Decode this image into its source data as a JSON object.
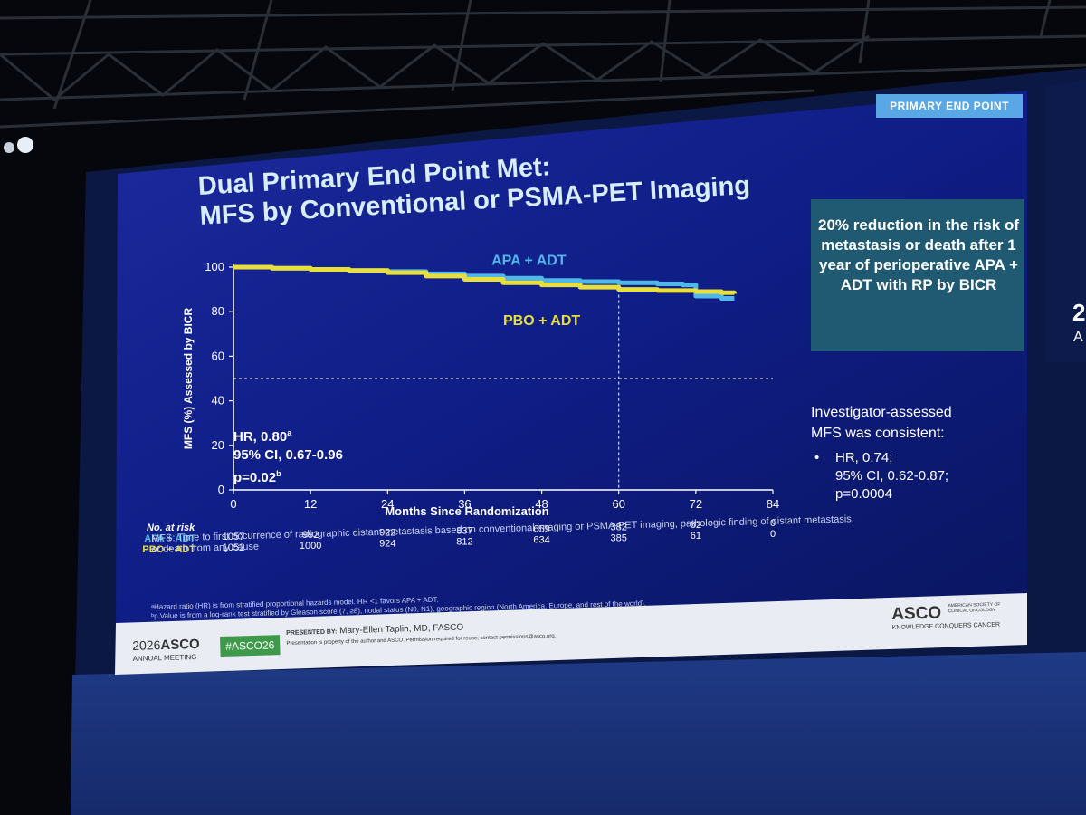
{
  "slide": {
    "badge": "PRIMARY END POINT",
    "title_line1": "Dual Primary End Point Met:",
    "title_line2": "MFS by Conventional or PSMA-PET Imaging",
    "callout": "20% reduction in the risk of metastasis or death after 1 year of perioperative APA + ADT with RP by BICR",
    "stats": {
      "hr": "HR, 0.80",
      "hr_sup": "a",
      "ci": "95% CI, 0.67-0.96",
      "p": "p=0.02",
      "p_sup": "b"
    },
    "investigator": {
      "heading1": "Investigator-assessed",
      "heading2": "MFS was consistent:",
      "bullet": "•",
      "line1": "HR, 0.74;",
      "line2": "95% CI, 0.62-0.87;",
      "line3": "p=0.0004"
    },
    "footnote_mfs": "MFS: Time to first occurrence of radiographic distant metastasis based on conventional imaging or PSMA-PET imaging, pathologic finding of distant metastasis,",
    "footnote_mfs2": "or death from any cause",
    "footnote_a": "ᵃHazard ratio (HR) is from stratified proportional hazards model. HR <1 favors APA + ADT.",
    "footnote_b": "ᵇp Value is from a log-rank test stratified by Gleason score (7, ≥8), nodal status (N0, N1), geographic region (North America, Europe, and rest of the world).",
    "footer": {
      "meeting_year": "2026",
      "meeting_org": "ASCO",
      "meeting_sub": "ANNUAL MEETING",
      "hashtag": "#ASCO26",
      "presented_by": "PRESENTED BY:",
      "presenter": "Mary-Ellen Taplin, MD, FASCO",
      "permission": "Presentation is property of the author and ASCO. Permission required for reuse; contact permissions@asco.org.",
      "asco_logo": "ASCO",
      "asco_tagline1": "AMERICAN SOCIETY OF",
      "asco_tagline2": "CLINICAL ONCOLOGY",
      "asco_slogan": "KNOWLEDGE CONQUERS CANCER"
    },
    "side_screen": {
      "text1": "2",
      "text2": "A"
    }
  },
  "chart_data": {
    "type": "line",
    "xlabel": "Months Since Randomization",
    "ylabel": "MFS (%) Assessed by BICR",
    "xlim": [
      0,
      84
    ],
    "ylim": [
      0,
      100
    ],
    "xticks": [
      0,
      12,
      24,
      36,
      48,
      60,
      72,
      84
    ],
    "yticks": [
      0,
      20,
      40,
      60,
      80,
      100
    ],
    "reference_lines": {
      "horizontal_y": 50,
      "vertical_x": 60
    },
    "series": [
      {
        "name": "APA + ADT",
        "color": "#4fb8e8",
        "x": [
          0,
          6,
          12,
          18,
          24,
          30,
          36,
          42,
          48,
          54,
          60,
          66,
          70,
          72,
          76,
          78
        ],
        "y": [
          100,
          99.5,
          99,
          98.5,
          98,
          97,
          96,
          95,
          94,
          93.5,
          93,
          92.5,
          92,
          87,
          86,
          86
        ]
      },
      {
        "name": "PBO + ADT",
        "color": "#e9df3a",
        "x": [
          0,
          6,
          12,
          18,
          24,
          30,
          36,
          42,
          48,
          54,
          60,
          66,
          72,
          76,
          78
        ],
        "y": [
          100,
          99.5,
          99,
          98.5,
          97.5,
          96,
          94.5,
          93,
          92,
          91,
          90,
          89.5,
          89,
          88.5,
          88
        ]
      }
    ],
    "risk_table": {
      "title": "No. at risk",
      "times": [
        0,
        12,
        24,
        36,
        48,
        60,
        72,
        84
      ],
      "rows": [
        {
          "label": "APA + ADT",
          "color": "#4fb8e8",
          "values": [
            "1057",
            "992",
            "922",
            "837",
            "659",
            "382",
            "62",
            "0"
          ]
        },
        {
          "label": "PBO + ADT",
          "color": "#e9df3a",
          "values": [
            "1052",
            "1000",
            "924",
            "812",
            "634",
            "385",
            "61",
            "0"
          ]
        }
      ]
    },
    "colors": {
      "background": "#0d1a78",
      "axis": "#ffffff"
    }
  }
}
